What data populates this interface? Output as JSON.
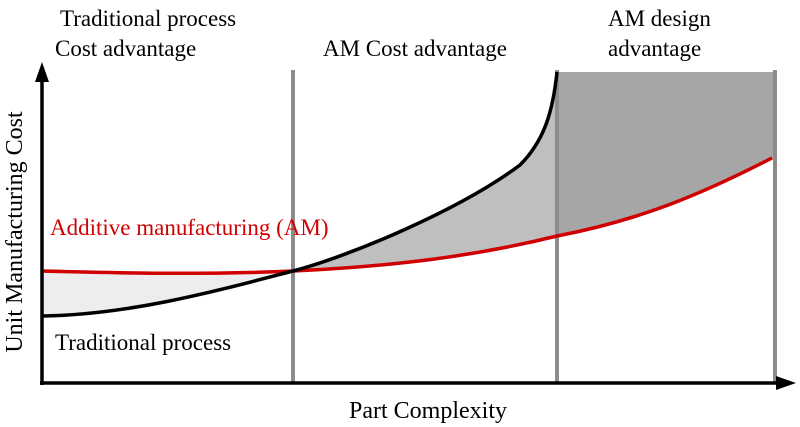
{
  "regions": {
    "left": {
      "line1": "Traditional process",
      "line2": "Cost advantage"
    },
    "middle": "AM Cost advantage",
    "right": {
      "line1": "AM design",
      "line2": "advantage"
    }
  },
  "curves": {
    "am": "Additive manufacturing (AM)",
    "traditional": "Traditional process"
  },
  "axes": {
    "x": "Part Complexity",
    "y": "Unit Manufacturing Cost"
  }
}
